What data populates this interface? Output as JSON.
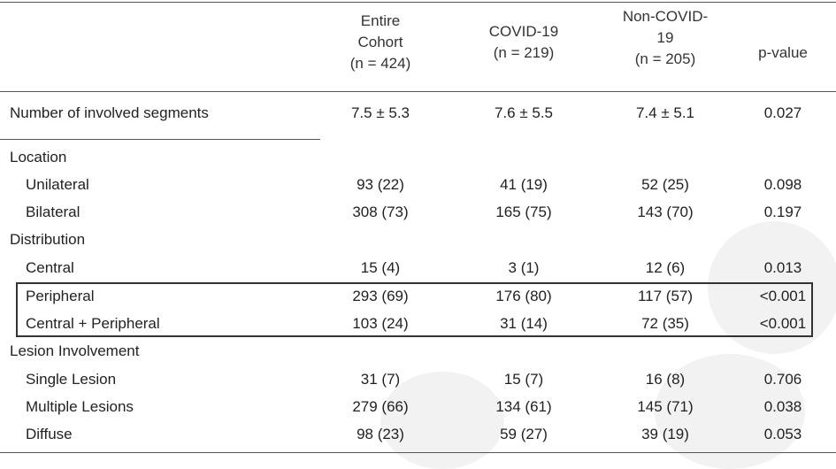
{
  "header": {
    "col1": [
      "Entire",
      "Cohort",
      "(n = 424)"
    ],
    "col2": [
      "COVID-19",
      "(n = 219)"
    ],
    "col3": [
      "Non-COVID-",
      "19",
      "(n = 205)"
    ],
    "col4": [
      "p-value"
    ]
  },
  "summary_row": {
    "label": "Number of involved segments",
    "values": [
      "7.5 ± 5.3",
      "7.6 ± 5.5",
      "7.4 ± 5.1",
      "0.027"
    ]
  },
  "sections": [
    {
      "title": "Location",
      "rows": [
        {
          "label": "Unilateral",
          "values": [
            "93 (22)",
            "41 (19)",
            "52 (25)",
            "0.098"
          ]
        },
        {
          "label": "Bilateral",
          "values": [
            "308 (73)",
            "165 (75)",
            "143 (70)",
            "0.197"
          ]
        }
      ]
    },
    {
      "title": "Distribution",
      "rows": [
        {
          "label": "Central",
          "values": [
            "15 (4)",
            "3 (1)",
            "12 (6)",
            "0.013"
          ]
        },
        {
          "label": "Peripheral",
          "values": [
            "293 (69)",
            "176 (80)",
            "117 (57)",
            "<0.001"
          ]
        },
        {
          "label": "Central + Peripheral",
          "values": [
            "103 (24)",
            "31 (14)",
            "72 (35)",
            "<0.001"
          ]
        }
      ]
    },
    {
      "title": "Lesion Involvement",
      "rows": [
        {
          "label": "Single Lesion",
          "values": [
            "31 (7)",
            "15 (7)",
            "16 (8)",
            "0.706"
          ]
        },
        {
          "label": "Multiple Lesions",
          "values": [
            "279 (66)",
            "134 (61)",
            "145 (71)",
            "0.038"
          ]
        },
        {
          "label": "Diffuse",
          "values": [
            "98 (23)",
            "59 (27)",
            "39 (19)",
            "0.053"
          ]
        }
      ]
    }
  ]
}
